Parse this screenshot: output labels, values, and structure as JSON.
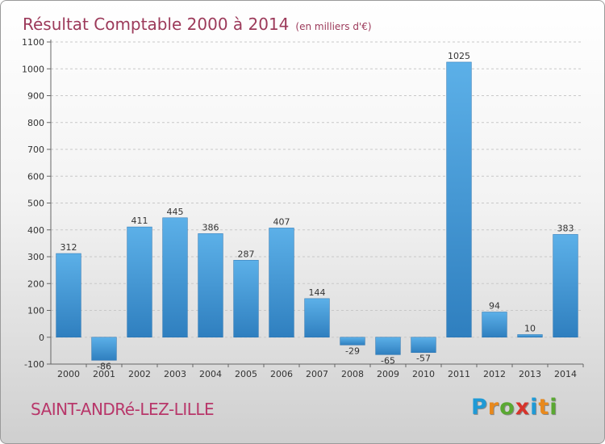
{
  "header": {
    "title": "Résultat Comptable 2000 à 2014",
    "subtitle": "(en milliers d'€)"
  },
  "footer": {
    "commune": "SAINT-ANDRé-LEZ-LILLE",
    "logo_letters": [
      "P",
      "r",
      "o",
      "x",
      "i",
      "t",
      "i"
    ],
    "logo_colors": [
      "#1f9ad6",
      "#e8891d",
      "#5aa832",
      "#d6332b",
      "#1f9ad6",
      "#e8891d",
      "#5aa832"
    ]
  },
  "chart_data": {
    "type": "bar",
    "categories": [
      "2000",
      "2001",
      "2002",
      "2003",
      "2004",
      "2005",
      "2006",
      "2007",
      "2008",
      "2009",
      "2010",
      "2011",
      "2012",
      "2013",
      "2014"
    ],
    "values": [
      312,
      -86,
      411,
      445,
      386,
      287,
      407,
      144,
      -29,
      -65,
      -57,
      1025,
      94,
      10,
      383
    ],
    "data_labels": [
      "312",
      "-86",
      "411",
      "445",
      "386",
      "287",
      "407",
      "144",
      "-29",
      "-65",
      "-57",
      "1025",
      "94",
      "10",
      "383"
    ],
    "title": "Résultat Comptable 2000 à 2014",
    "ylim": [
      -100,
      1100
    ],
    "yticks": [
      -100,
      0,
      100,
      200,
      300,
      400,
      500,
      600,
      700,
      800,
      900,
      1000,
      1100
    ],
    "grid": true,
    "bar_color": "#4a9fde"
  }
}
